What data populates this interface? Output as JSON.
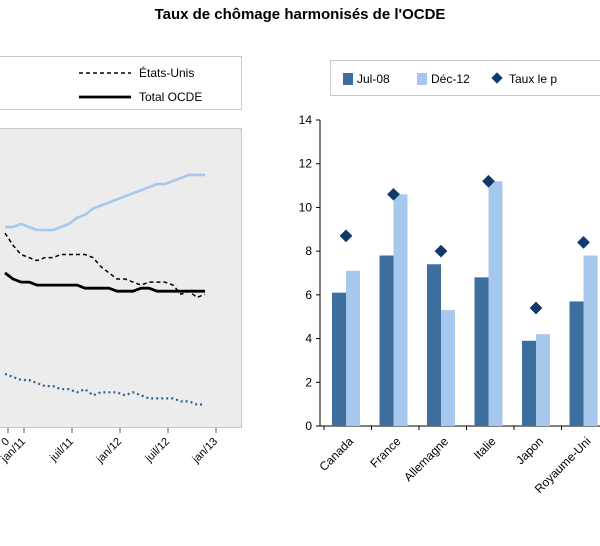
{
  "title": "Taux de chômage harmonisés de l'OCDE",
  "chart_data": [
    {
      "type": "line",
      "title": "",
      "xlabel": "",
      "ylabel": "",
      "x_ticks": [
        "0",
        "jan/11",
        "juil/11",
        "jan/12",
        "juil/12",
        "jan/13"
      ],
      "legend_position": "top-right",
      "series": [
        {
          "name": "États-Unis",
          "color": "#000000",
          "dash": "dashed",
          "x": [
            "2010-11",
            "2010-12",
            "2011-01",
            "2011-02",
            "2011-03",
            "2011-04",
            "2011-05",
            "2011-06",
            "2011-07",
            "2011-08",
            "2011-09",
            "2011-10",
            "2011-11",
            "2011-12",
            "2012-01",
            "2012-02",
            "2012-03",
            "2012-04",
            "2012-05",
            "2012-06",
            "2012-07",
            "2012-08",
            "2012-09",
            "2012-10",
            "2012-11",
            "2012-12"
          ],
          "values": [
            9.8,
            9.4,
            9.1,
            9.0,
            8.9,
            9.0,
            9.0,
            9.1,
            9.1,
            9.1,
            9.1,
            9.0,
            8.7,
            8.5,
            8.3,
            8.3,
            8.2,
            8.1,
            8.2,
            8.2,
            8.2,
            8.1,
            7.8,
            7.9,
            7.7,
            7.8
          ]
        },
        {
          "name": "Total OCDE",
          "color": "#000000",
          "dash": "solid",
          "x": [
            "2010-11",
            "2010-12",
            "2011-01",
            "2011-02",
            "2011-03",
            "2011-04",
            "2011-05",
            "2011-06",
            "2011-07",
            "2011-08",
            "2011-09",
            "2011-10",
            "2011-11",
            "2011-12",
            "2012-01",
            "2012-02",
            "2012-03",
            "2012-04",
            "2012-05",
            "2012-06",
            "2012-07",
            "2012-08",
            "2012-09",
            "2012-10",
            "2012-11",
            "2012-12"
          ],
          "values": [
            8.5,
            8.3,
            8.2,
            8.2,
            8.1,
            8.1,
            8.1,
            8.1,
            8.1,
            8.1,
            8.0,
            8.0,
            8.0,
            8.0,
            7.9,
            7.9,
            7.9,
            8.0,
            8.0,
            7.9,
            7.9,
            7.9,
            7.9,
            7.9,
            7.9,
            7.9
          ]
        },
        {
          "name": "",
          "color": "#a6c8ec",
          "dash": "solid",
          "x": [
            "2010-11",
            "2010-12",
            "2011-01",
            "2011-02",
            "2011-03",
            "2011-04",
            "2011-05",
            "2011-06",
            "2011-07",
            "2011-08",
            "2011-09",
            "2011-10",
            "2011-11",
            "2011-12",
            "2012-01",
            "2012-02",
            "2012-03",
            "2012-04",
            "2012-05",
            "2012-06",
            "2012-07",
            "2012-08",
            "2012-09",
            "2012-10",
            "2012-11",
            "2012-12"
          ],
          "values": [
            10.0,
            10.0,
            10.1,
            10.0,
            9.9,
            9.9,
            9.9,
            10.0,
            10.1,
            10.3,
            10.4,
            10.6,
            10.7,
            10.8,
            10.9,
            11.0,
            11.1,
            11.2,
            11.3,
            11.4,
            11.4,
            11.5,
            11.6,
            11.7,
            11.7,
            11.7
          ]
        },
        {
          "name": "",
          "color": "#2e6096",
          "dash": "dotted",
          "x": [
            "2010-11",
            "2010-12",
            "2011-01",
            "2011-02",
            "2011-03",
            "2011-04",
            "2011-05",
            "2011-06",
            "2011-07",
            "2011-08",
            "2011-09",
            "2011-10",
            "2011-11",
            "2011-12",
            "2012-01",
            "2012-02",
            "2012-03",
            "2012-04",
            "2012-05",
            "2012-06",
            "2012-07",
            "2012-08",
            "2012-09",
            "2012-10",
            "2012-11",
            "2012-12"
          ],
          "values": [
            5.2,
            5.1,
            5.0,
            5.0,
            4.9,
            4.8,
            4.8,
            4.7,
            4.7,
            4.6,
            4.7,
            4.5,
            4.6,
            4.6,
            4.6,
            4.5,
            4.6,
            4.5,
            4.4,
            4.4,
            4.4,
            4.4,
            4.3,
            4.3,
            4.2,
            4.2
          ]
        }
      ]
    },
    {
      "type": "bar",
      "title": "",
      "xlabel": "",
      "ylabel": "",
      "ylim": [
        0,
        14
      ],
      "y_ticks": [
        0,
        2,
        4,
        6,
        8,
        10,
        12,
        14
      ],
      "grid": false,
      "legend_position": "top",
      "categories": [
        "Canada",
        "France",
        "Allemagne",
        "Italie",
        "Japon",
        "Royaume-Uni"
      ],
      "series": [
        {
          "name": "Jul-08",
          "color": "#3d6e9e",
          "values": [
            6.1,
            7.8,
            7.4,
            6.8,
            3.9,
            5.7
          ]
        },
        {
          "name": "Déc-12",
          "color": "#a6c8ec",
          "values": [
            7.1,
            10.6,
            5.3,
            11.2,
            4.2,
            7.8
          ]
        }
      ],
      "markers": {
        "name": "Taux le p",
        "color": "#0f3a6b",
        "values": [
          8.7,
          10.6,
          8.0,
          11.2,
          5.4,
          8.4
        ]
      }
    }
  ]
}
